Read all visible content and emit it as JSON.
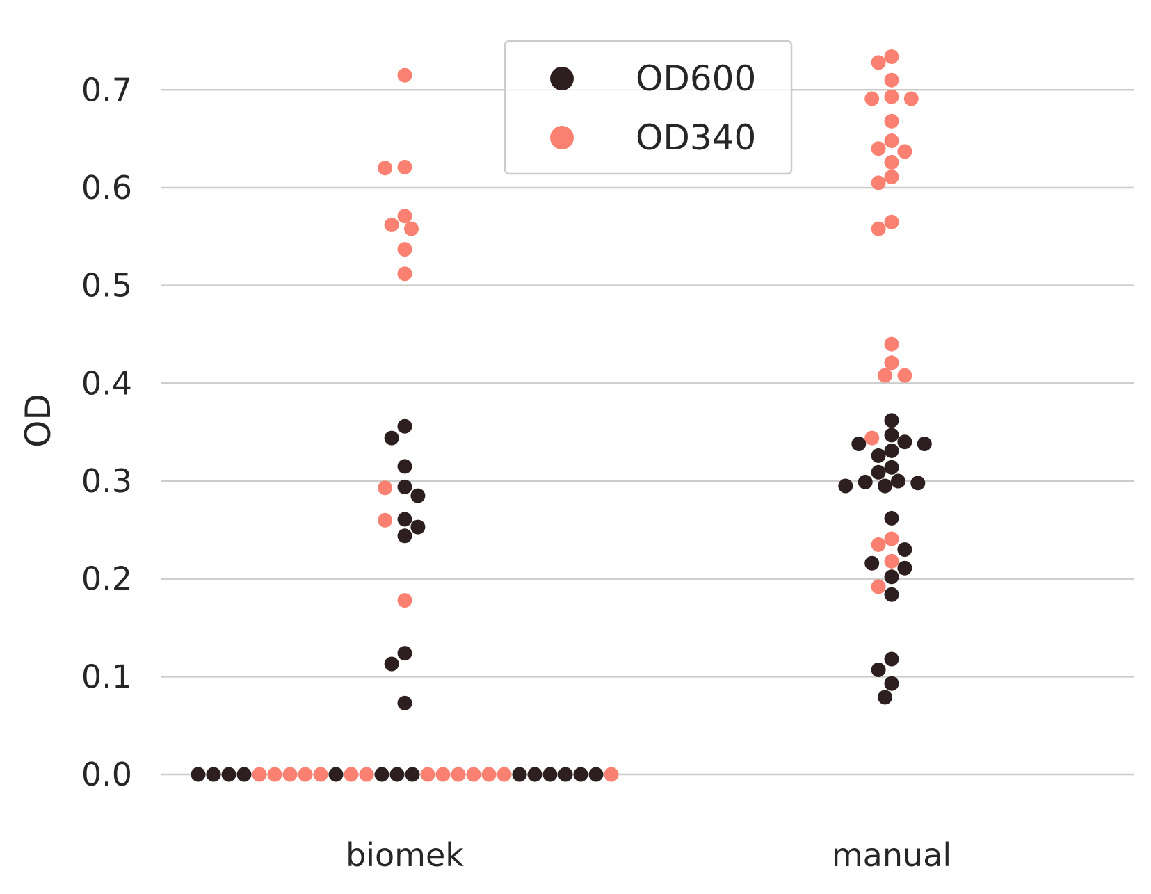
{
  "chart_data": {
    "type": "scatter",
    "subtype": "swarm",
    "ylabel": "OD",
    "xlabel": "",
    "categories": [
      "biomek",
      "manual"
    ],
    "ylim": [
      -0.05,
      0.75
    ],
    "yticks": [
      "0.0",
      "0.1",
      "0.2",
      "0.3",
      "0.4",
      "0.5",
      "0.6",
      "0.7"
    ],
    "ytick_values": [
      0.0,
      0.1,
      0.2,
      0.3,
      0.4,
      0.5,
      0.6,
      0.7
    ],
    "grid": "horizontal",
    "legend": {
      "placement": "top-center"
    },
    "series": [
      {
        "name": "OD600",
        "color": "#2d1f1f",
        "points": [
          {
            "category": "biomek",
            "values": [
              0.356,
              0.344,
              0.315,
              0.294,
              0.285,
              0.261,
              0.253,
              0.244,
              0.124,
              0.113,
              0.073,
              0,
              0,
              0,
              0,
              0,
              0,
              0,
              0,
              0,
              0,
              0,
              0,
              0,
              0
            ]
          },
          {
            "category": "manual",
            "values": [
              0.362,
              0.347,
              0.34,
              0.338,
              0.338,
              0.331,
              0.326,
              0.314,
              0.309,
              0.3,
              0.299,
              0.298,
              0.295,
              0.295,
              0.262,
              0.23,
              0.216,
              0.211,
              0.202,
              0.184,
              0.118,
              0.107,
              0.093,
              0.079
            ]
          }
        ]
      },
      {
        "name": "OD340",
        "color": "#fa8072",
        "points": [
          {
            "category": "biomek",
            "values": [
              0.715,
              0.621,
              0.62,
              0.571,
              0.562,
              0.558,
              0.537,
              0.512,
              0.293,
              0.26,
              0.178,
              0,
              0,
              0,
              0,
              0,
              0,
              0,
              0,
              0,
              0,
              0,
              0,
              0,
              0
            ]
          },
          {
            "category": "manual",
            "values": [
              0.734,
              0.728,
              0.71,
              0.693,
              0.691,
              0.691,
              0.668,
              0.648,
              0.64,
              0.637,
              0.626,
              0.611,
              0.605,
              0.565,
              0.558,
              0.44,
              0.421,
              0.408,
              0.408,
              0.344,
              0.241,
              0.235,
              0.218,
              0.192
            ]
          }
        ]
      }
    ]
  }
}
